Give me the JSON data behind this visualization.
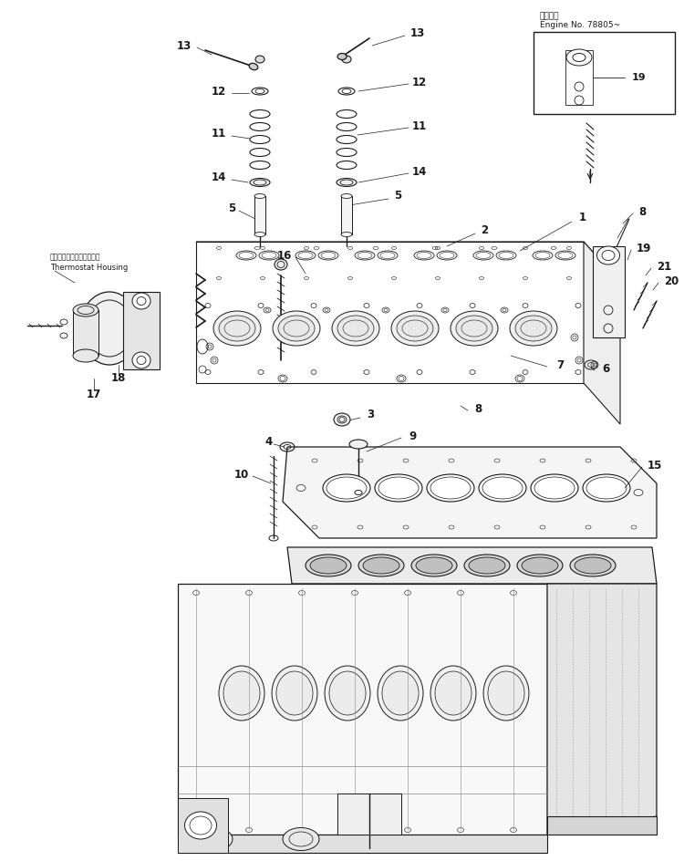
{
  "bg_color": "#ffffff",
  "line_color": "#1a1a1a",
  "fig_width": 7.5,
  "fig_height": 9.44,
  "inset_label_top": "適用号端",
  "inset_label_bot": "Engine No. 78805~",
  "thermostat_label1": "サーモスタットハウジング",
  "thermostat_label2": "Thermostat Housing"
}
